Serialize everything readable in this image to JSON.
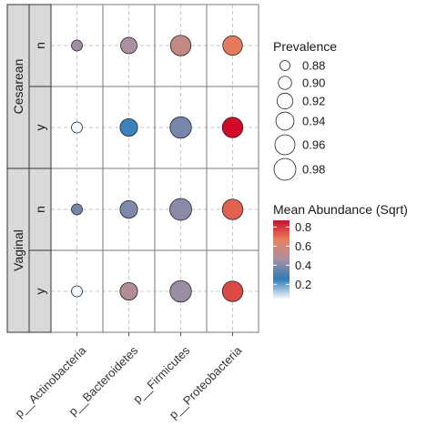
{
  "chart_data": {
    "type": "scatter",
    "x_categories": [
      "p__Actinobacteria",
      "p__Bacteroidetes",
      "p__Firmicutes",
      "p__Proteobacteria"
    ],
    "facets": [
      {
        "label": "Cesarean",
        "rows": [
          "n",
          "y"
        ]
      },
      {
        "label": "Vaginal",
        "rows": [
          "n",
          "y"
        ]
      }
    ],
    "points": [
      {
        "facet": "Cesarean",
        "row": "n",
        "x": "p__Actinobacteria",
        "prevalence": 0.885,
        "abundance": 0.45
      },
      {
        "facet": "Cesarean",
        "row": "n",
        "x": "p__Bacteroidetes",
        "prevalence": 0.925,
        "abundance": 0.47
      },
      {
        "facet": "Cesarean",
        "row": "n",
        "x": "p__Firmicutes",
        "prevalence": 0.965,
        "abundance": 0.55
      },
      {
        "facet": "Cesarean",
        "row": "n",
        "x": "p__Proteobacteria",
        "prevalence": 0.955,
        "abundance": 0.68
      },
      {
        "facet": "Cesarean",
        "row": "y",
        "x": "p__Actinobacteria",
        "prevalence": 0.885,
        "abundance": 0.05
      },
      {
        "facet": "Cesarean",
        "row": "y",
        "x": "p__Bacteroidetes",
        "prevalence": 0.935,
        "abundance": 0.24
      },
      {
        "facet": "Cesarean",
        "row": "y",
        "x": "p__Firmicutes",
        "prevalence": 0.975,
        "abundance": 0.38
      },
      {
        "facet": "Cesarean",
        "row": "y",
        "x": "p__Proteobacteria",
        "prevalence": 0.965,
        "abundance": 0.87
      },
      {
        "facet": "Vaginal",
        "row": "n",
        "x": "p__Actinobacteria",
        "prevalence": 0.885,
        "abundance": 0.38
      },
      {
        "facet": "Vaginal",
        "row": "n",
        "x": "p__Bacteroidetes",
        "prevalence": 0.935,
        "abundance": 0.39
      },
      {
        "facet": "Vaginal",
        "row": "n",
        "x": "p__Firmicutes",
        "prevalence": 0.98,
        "abundance": 0.41
      },
      {
        "facet": "Vaginal",
        "row": "n",
        "x": "p__Proteobacteria",
        "prevalence": 0.965,
        "abundance": 0.72
      },
      {
        "facet": "Vaginal",
        "row": "y",
        "x": "p__Actinobacteria",
        "prevalence": 0.885,
        "abundance": 0.05
      },
      {
        "facet": "Vaginal",
        "row": "y",
        "x": "p__Bacteroidetes",
        "prevalence": 0.935,
        "abundance": 0.5
      },
      {
        "facet": "Vaginal",
        "row": "y",
        "x": "p__Firmicutes",
        "prevalence": 0.975,
        "abundance": 0.44
      },
      {
        "facet": "Vaginal",
        "row": "y",
        "x": "p__Proteobacteria",
        "prevalence": 0.965,
        "abundance": 0.76
      }
    ],
    "size_legend": {
      "title": "Prevalence",
      "breaks": [
        0.88,
        0.9,
        0.92,
        0.94,
        0.96,
        0.98
      ],
      "labels": [
        "0.88",
        "0.90",
        "0.92",
        "0.94",
        "0.96",
        "0.98"
      ]
    },
    "color_legend": {
      "title": "Mean Abundance (Sqrt)",
      "breaks": [
        0.2,
        0.4,
        0.6,
        0.8
      ],
      "labels": [
        "0.2",
        "0.4",
        "0.6",
        "0.8"
      ],
      "limits": [
        0.05,
        0.87
      ],
      "colors": [
        "#f2f8fc",
        "#2e7ab8",
        "#a690a3",
        "#e7825f",
        "#d10a2a"
      ]
    },
    "grid": true,
    "legend_position": "right"
  }
}
